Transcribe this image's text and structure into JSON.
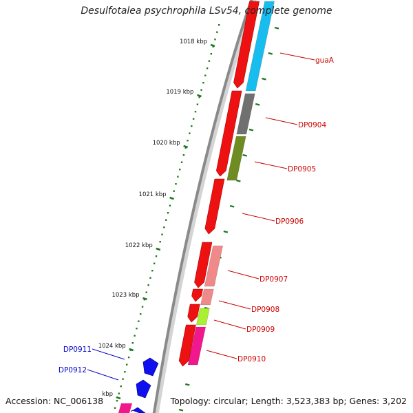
{
  "title": "Desulfotalea psychrophila LSv54, complete genome",
  "footer": {
    "accession": "Accession: NC_006138",
    "topology": "Topology: circular; Length: 3,523,383 bp; Genes: 3,202"
  },
  "colors": {
    "backbone": "#8a8a8a",
    "tick": "#1e7a1e",
    "label_forward": "#cc0000",
    "label_reverse": "#0000cc",
    "red": "#ee1111",
    "cyan": "#18bdf0",
    "gray": "#707070",
    "olive": "#6e8c22",
    "salmon": "#f08a8a",
    "lime": "#aaf030",
    "pink": "#f0188c",
    "blue": "#1010ee"
  },
  "kbp_labels": [
    "1018 kbp",
    "1019 kbp",
    "1020 kbp",
    "1021 kbp",
    "1022 kbp",
    "1023 kbp",
    "1024 kbp",
    "kbp"
  ],
  "gene_labels": [
    {
      "text": "guaA",
      "strand": "forward"
    },
    {
      "text": "DP0904",
      "strand": "forward"
    },
    {
      "text": "DP0905",
      "strand": "forward"
    },
    {
      "text": "DP0906",
      "strand": "forward"
    },
    {
      "text": "DP0907",
      "strand": "forward"
    },
    {
      "text": "DP0908",
      "strand": "forward"
    },
    {
      "text": "DP0909",
      "strand": "forward"
    },
    {
      "text": "DP0910",
      "strand": "forward"
    },
    {
      "text": "DP0911",
      "strand": "reverse"
    },
    {
      "text": "DP0912",
      "strand": "reverse"
    }
  ]
}
